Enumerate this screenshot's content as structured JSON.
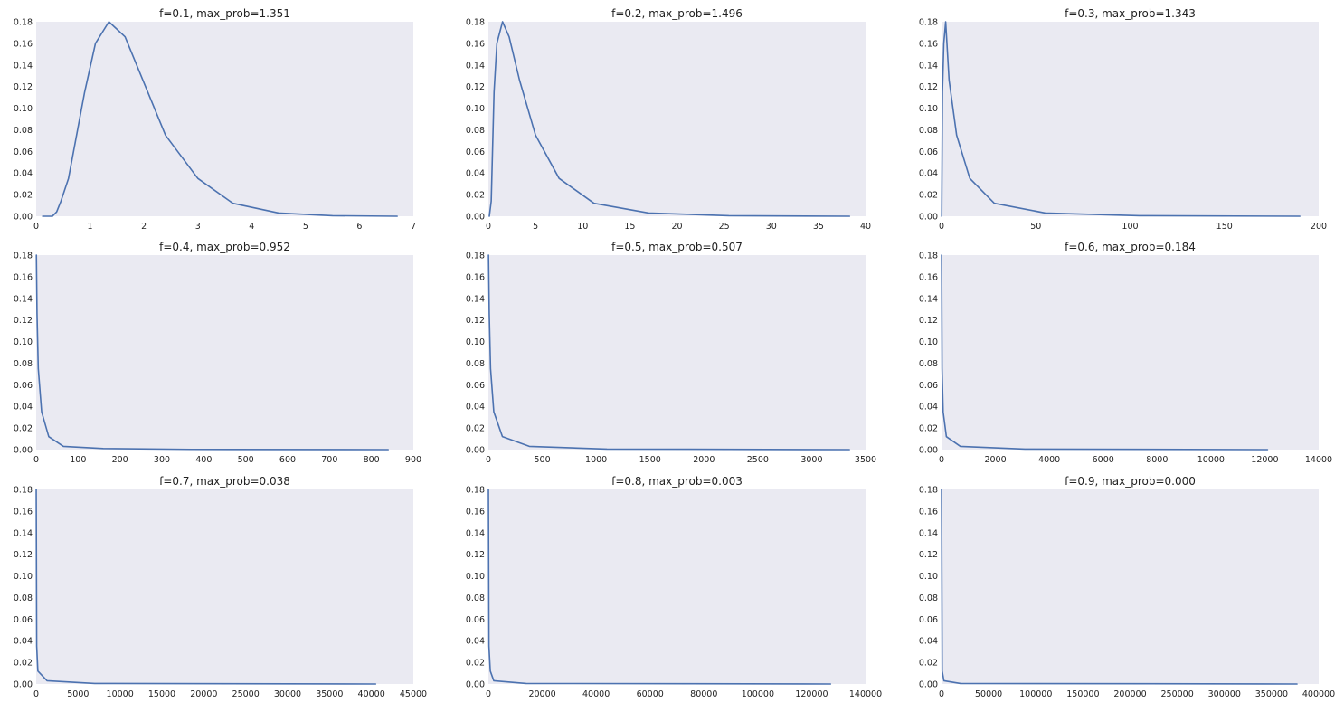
{
  "colors": {
    "line": "#4c72b0",
    "plot_background": "#eaeaf2",
    "text": "#222222"
  },
  "chart_data": [
    {
      "type": "line",
      "title": "f=0.1, max_prob=1.351",
      "xlim": [
        0,
        7
      ],
      "ylim": [
        0,
        0.18
      ],
      "xticks": [
        0,
        1,
        2,
        3,
        4,
        5,
        6,
        7
      ],
      "xtick_labels": [
        "0",
        "1",
        "2",
        "3",
        "4",
        "5",
        "6",
        "7"
      ],
      "yticks": [
        0,
        0.02,
        0.04,
        0.06,
        0.08,
        0.1,
        0.12,
        0.14,
        0.16,
        0.18
      ],
      "ytick_labels": [
        "0.00",
        "0.02",
        "0.04",
        "0.06",
        "0.08",
        "0.10",
        "0.12",
        "0.14",
        "0.16",
        "0.18"
      ],
      "grid": false,
      "series": [
        {
          "x": [
            0.12,
            0.3,
            0.38,
            0.46,
            0.6,
            0.9,
            1.1,
            1.35,
            1.65,
            2.4,
            3.0,
            3.65,
            4.5,
            5.5,
            6.7
          ],
          "y": [
            0.0,
            0.0,
            0.004,
            0.014,
            0.035,
            0.115,
            0.16,
            0.18,
            0.166,
            0.075,
            0.035,
            0.012,
            0.003,
            0.0005,
            0.0
          ]
        }
      ]
    },
    {
      "type": "line",
      "title": "f=0.2, max_prob=1.496",
      "xlim": [
        0,
        40
      ],
      "ylim": [
        0,
        0.18
      ],
      "xticks": [
        0,
        5,
        10,
        15,
        20,
        25,
        30,
        35,
        40
      ],
      "xtick_labels": [
        "0",
        "5",
        "10",
        "15",
        "20",
        "25",
        "30",
        "35",
        "40"
      ],
      "yticks": [
        0,
        0.02,
        0.04,
        0.06,
        0.08,
        0.1,
        0.12,
        0.14,
        0.16,
        0.18
      ],
      "ytick_labels": [
        "0.00",
        "0.02",
        "0.04",
        "0.06",
        "0.08",
        "0.10",
        "0.12",
        "0.14",
        "0.16",
        "0.18"
      ],
      "grid": false,
      "series": [
        {
          "x": [
            0.1,
            0.3,
            0.6,
            0.9,
            1.5,
            2.2,
            3.3,
            5.0,
            7.5,
            11.2,
            17,
            25.5,
            38.3
          ],
          "y": [
            0.0,
            0.014,
            0.115,
            0.16,
            0.18,
            0.166,
            0.126,
            0.075,
            0.035,
            0.012,
            0.003,
            0.0005,
            0.0
          ]
        }
      ]
    },
    {
      "type": "line",
      "title": "f=0.3, max_prob=1.343",
      "xlim": [
        0,
        200
      ],
      "ylim": [
        0,
        0.18
      ],
      "xticks": [
        0,
        50,
        100,
        150,
        200
      ],
      "xtick_labels": [
        "0",
        "50",
        "100",
        "150",
        "200"
      ],
      "yticks": [
        0,
        0.02,
        0.04,
        0.06,
        0.08,
        0.1,
        0.12,
        0.14,
        0.16,
        0.18
      ],
      "ytick_labels": [
        "0.00",
        "0.02",
        "0.04",
        "0.06",
        "0.08",
        "0.10",
        "0.12",
        "0.14",
        "0.16",
        "0.18"
      ],
      "grid": false,
      "series": [
        {
          "x": [
            0.1,
            0.5,
            1.2,
            2.2,
            4,
            8,
            15,
            28,
            55,
            105,
            190
          ],
          "y": [
            0.0,
            0.115,
            0.16,
            0.18,
            0.126,
            0.075,
            0.035,
            0.012,
            0.003,
            0.0005,
            0.0
          ]
        }
      ]
    },
    {
      "type": "line",
      "title": "f=0.4, max_prob=0.952",
      "xlim": [
        0,
        900
      ],
      "ylim": [
        0,
        0.18
      ],
      "xticks": [
        0,
        100,
        200,
        300,
        400,
        500,
        600,
        700,
        800,
        900
      ],
      "xtick_labels": [
        "0",
        "100",
        "200",
        "300",
        "400",
        "500",
        "600",
        "700",
        "800",
        "900"
      ],
      "yticks": [
        0,
        0.02,
        0.04,
        0.06,
        0.08,
        0.1,
        0.12,
        0.14,
        0.16,
        0.18
      ],
      "ytick_labels": [
        "0.00",
        "0.02",
        "0.04",
        "0.06",
        "0.08",
        "0.10",
        "0.12",
        "0.14",
        "0.16",
        "0.18"
      ],
      "grid": false,
      "series": [
        {
          "x": [
            0.5,
            2,
            5,
            13,
            30,
            65,
            160,
            370,
            840
          ],
          "y": [
            0.18,
            0.126,
            0.075,
            0.035,
            0.012,
            0.003,
            0.001,
            0.0002,
            0.0
          ]
        }
      ]
    },
    {
      "type": "line",
      "title": "f=0.5, max_prob=0.507",
      "xlim": [
        0,
        3500
      ],
      "ylim": [
        0,
        0.18
      ],
      "xticks": [
        0,
        500,
        1000,
        1500,
        2000,
        2500,
        3000,
        3500
      ],
      "xtick_labels": [
        "0",
        "500",
        "1000",
        "1500",
        "2000",
        "2500",
        "3000",
        "3500"
      ],
      "yticks": [
        0,
        0.02,
        0.04,
        0.06,
        0.08,
        0.1,
        0.12,
        0.14,
        0.16,
        0.18
      ],
      "ytick_labels": [
        "0.00",
        "0.02",
        "0.04",
        "0.06",
        "0.08",
        "0.10",
        "0.12",
        "0.14",
        "0.16",
        "0.18"
      ],
      "grid": false,
      "series": [
        {
          "x": [
            1,
            8,
            20,
            50,
            130,
            380,
            1100,
            3350
          ],
          "y": [
            0.18,
            0.126,
            0.075,
            0.035,
            0.012,
            0.003,
            0.0005,
            0.0
          ]
        }
      ]
    },
    {
      "type": "line",
      "title": "f=0.6, max_prob=0.184",
      "xlim": [
        0,
        14000
      ],
      "ylim": [
        0,
        0.18
      ],
      "xticks": [
        0,
        2000,
        4000,
        6000,
        8000,
        10000,
        12000,
        14000
      ],
      "xtick_labels": [
        "0",
        "2000",
        "4000",
        "6000",
        "8000",
        "10000",
        "12000",
        "14000"
      ],
      "yticks": [
        0,
        0.02,
        0.04,
        0.06,
        0.08,
        0.1,
        0.12,
        0.14,
        0.16,
        0.18
      ],
      "ytick_labels": [
        "0.00",
        "0.02",
        "0.04",
        "0.06",
        "0.08",
        "0.10",
        "0.12",
        "0.14",
        "0.16",
        "0.18"
      ],
      "grid": false,
      "series": [
        {
          "x": [
            2,
            20,
            60,
            180,
            700,
            3100,
            12100
          ],
          "y": [
            0.18,
            0.075,
            0.035,
            0.012,
            0.003,
            0.0005,
            0.0
          ]
        }
      ]
    },
    {
      "type": "line",
      "title": "f=0.7, max_prob=0.038",
      "xlim": [
        0,
        45000
      ],
      "ylim": [
        0,
        0.18
      ],
      "xticks": [
        0,
        5000,
        10000,
        15000,
        20000,
        25000,
        30000,
        35000,
        40000,
        45000
      ],
      "xtick_labels": [
        "0",
        "5000",
        "10000",
        "15000",
        "20000",
        "25000",
        "30000",
        "35000",
        "40000",
        "45000"
      ],
      "yticks": [
        0,
        0.02,
        0.04,
        0.06,
        0.08,
        0.1,
        0.12,
        0.14,
        0.16,
        0.18
      ],
      "ytick_labels": [
        "0.00",
        "0.02",
        "0.04",
        "0.06",
        "0.08",
        "0.10",
        "0.12",
        "0.14",
        "0.16",
        "0.18"
      ],
      "grid": false,
      "series": [
        {
          "x": [
            5,
            60,
            200,
            1300,
            7000,
            40500
          ],
          "y": [
            0.18,
            0.035,
            0.012,
            0.003,
            0.0005,
            0.0
          ]
        }
      ]
    },
    {
      "type": "line",
      "title": "f=0.8, max_prob=0.003",
      "xlim": [
        0,
        140000
      ],
      "ylim": [
        0,
        0.18
      ],
      "xticks": [
        0,
        20000,
        40000,
        60000,
        80000,
        100000,
        120000,
        140000
      ],
      "xtick_labels": [
        "0",
        "20000",
        "40000",
        "60000",
        "80000",
        "100000",
        "120000",
        "140000"
      ],
      "yticks": [
        0,
        0.02,
        0.04,
        0.06,
        0.08,
        0.1,
        0.12,
        0.14,
        0.16,
        0.18
      ],
      "ytick_labels": [
        "0.00",
        "0.02",
        "0.04",
        "0.06",
        "0.08",
        "0.10",
        "0.12",
        "0.14",
        "0.16",
        "0.18"
      ],
      "grid": false,
      "series": [
        {
          "x": [
            10,
            200,
            700,
            2000,
            14000,
            127000
          ],
          "y": [
            0.18,
            0.035,
            0.012,
            0.003,
            0.0005,
            0.0
          ]
        }
      ]
    },
    {
      "type": "line",
      "title": "f=0.9, max_prob=0.000",
      "xlim": [
        0,
        400000
      ],
      "ylim": [
        0,
        0.18
      ],
      "xticks": [
        0,
        50000,
        100000,
        150000,
        200000,
        250000,
        300000,
        350000,
        400000
      ],
      "xtick_labels": [
        "0",
        "50000",
        "100000",
        "150000",
        "200000",
        "250000",
        "300000",
        "350000",
        "400000"
      ],
      "yticks": [
        0,
        0.02,
        0.04,
        0.06,
        0.08,
        0.1,
        0.12,
        0.14,
        0.16,
        0.18
      ],
      "ytick_labels": [
        "0.00",
        "0.02",
        "0.04",
        "0.06",
        "0.08",
        "0.10",
        "0.12",
        "0.14",
        "0.16",
        "0.18"
      ],
      "grid": false,
      "series": [
        {
          "x": [
            20,
            700,
            2500,
            20000,
            377000
          ],
          "y": [
            0.18,
            0.012,
            0.003,
            0.0005,
            0.0
          ]
        }
      ]
    }
  ]
}
